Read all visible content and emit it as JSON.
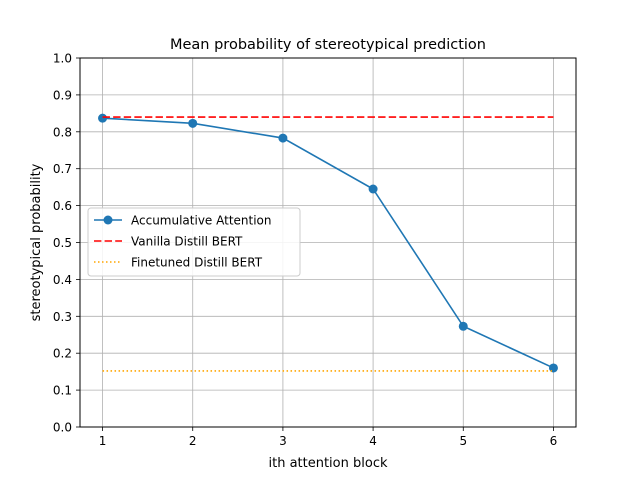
{
  "chart_data": {
    "type": "line",
    "title": "Mean probability of stereotypical prediction",
    "xlabel": "ith attention block",
    "ylabel": "stereotypical probability",
    "xlim": [
      0.75,
      6.25
    ],
    "ylim": [
      0.0,
      1.0
    ],
    "x_ticks": [
      1,
      2,
      3,
      4,
      5,
      6
    ],
    "y_ticks": [
      0.0,
      0.1,
      0.2,
      0.3,
      0.4,
      0.5,
      0.6,
      0.7,
      0.8,
      0.9,
      1.0
    ],
    "x_tick_labels": [
      "1",
      "2",
      "3",
      "4",
      "5",
      "6"
    ],
    "y_tick_labels": [
      "0.0",
      "0.1",
      "0.2",
      "0.3",
      "0.4",
      "0.5",
      "0.6",
      "0.7",
      "0.8",
      "0.9",
      "1.0"
    ],
    "grid": true,
    "legend_position": "center-left",
    "series": [
      {
        "name": "Accumulative Attention",
        "style": "solid",
        "marker": "circle",
        "color": "#1f77b4",
        "x": [
          1,
          2,
          3,
          4,
          5,
          6
        ],
        "y": [
          0.837,
          0.823,
          0.783,
          0.645,
          0.273,
          0.16
        ]
      },
      {
        "name": "Vanilla Distill BERT",
        "style": "dashed",
        "marker": "none",
        "color": "#ff0000",
        "x": [
          1,
          6
        ],
        "y": [
          0.84,
          0.84
        ]
      },
      {
        "name": "Finetuned Distill BERT",
        "style": "dotted",
        "marker": "none",
        "color": "#ffa500",
        "x": [
          1,
          6
        ],
        "y": [
          0.152,
          0.152
        ]
      }
    ]
  }
}
